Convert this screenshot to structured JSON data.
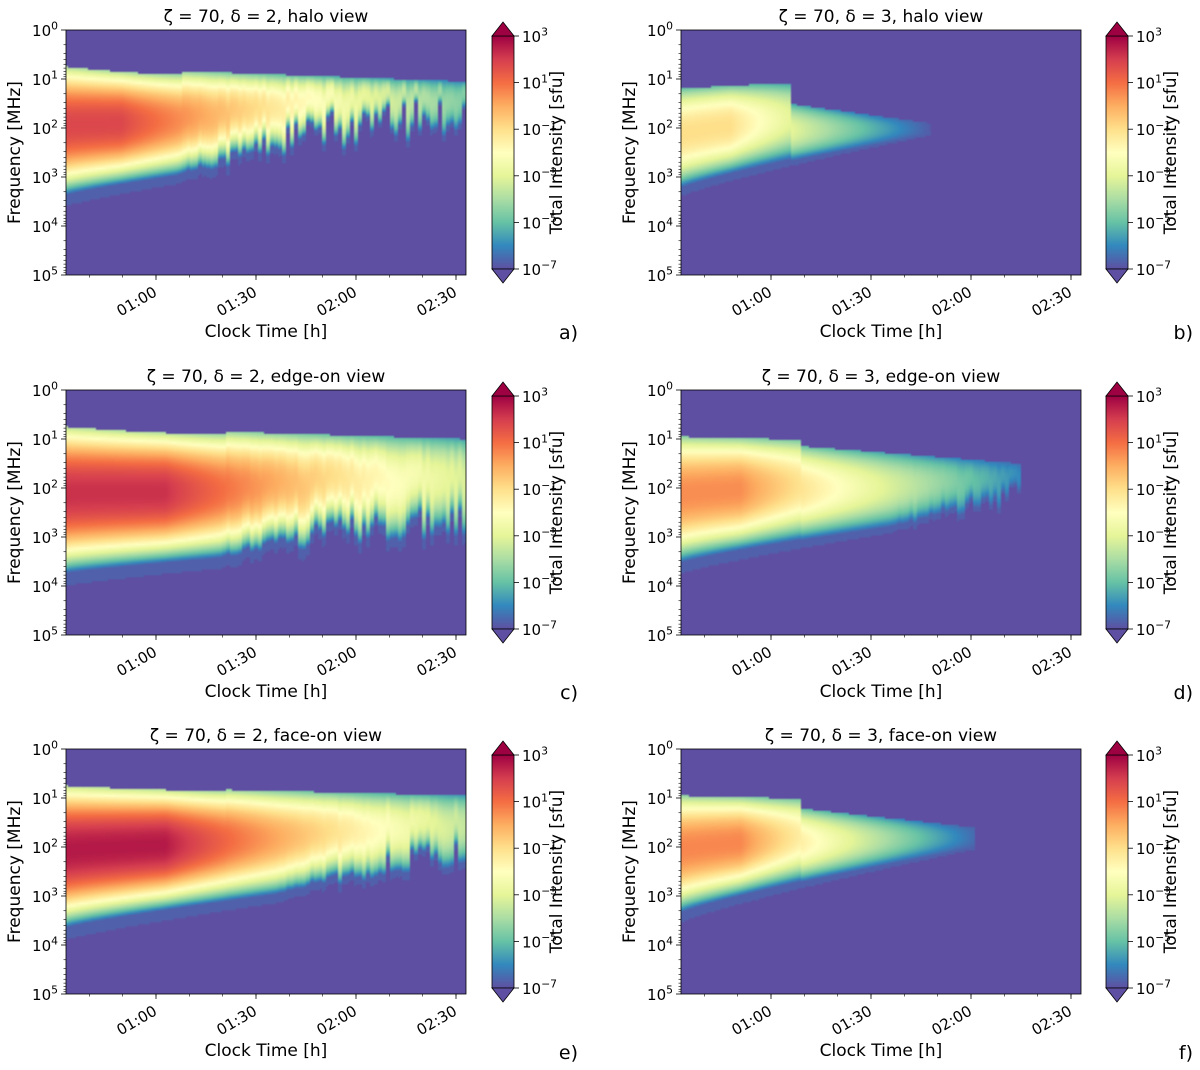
{
  "figure": {
    "colorbar": {
      "label": "Total Intensity [sfu]",
      "ticks": [
        {
          "base": "10",
          "exp": "3"
        },
        {
          "base": "10",
          "exp": "1"
        },
        {
          "base": "10",
          "exp": "−1"
        },
        {
          "base": "10",
          "exp": "−3"
        },
        {
          "base": "10",
          "exp": "−5"
        },
        {
          "base": "10",
          "exp": "−7"
        }
      ],
      "log_range": [
        -7,
        3
      ],
      "colors": [
        "#5e4fa2",
        "#3288bd",
        "#66c2a5",
        "#abdda4",
        "#e6f598",
        "#ffffbf",
        "#fee08b",
        "#fdae61",
        "#f46d43",
        "#d53e4f",
        "#9e0142"
      ]
    },
    "background_color": "#5e4fa2"
  },
  "chart_data": [
    {
      "type": "heatmap",
      "panel_label": "a)",
      "title": "ζ = 70, δ = 2, halo view",
      "xlabel": "Clock Time [h]",
      "ylabel": "Frequency [MHz]",
      "xticks": [
        "01:00",
        "01:30",
        "02:00",
        "02:30"
      ],
      "yticks": [
        {
          "base": "10",
          "exp": "0"
        },
        {
          "base": "10",
          "exp": "1"
        },
        {
          "base": "10",
          "exp": "2"
        },
        {
          "base": "10",
          "exp": "3"
        },
        {
          "base": "10",
          "exp": "4"
        },
        {
          "base": "10",
          "exp": "5"
        }
      ],
      "xlim_hours": [
        0.55,
        2.55
      ],
      "ylim_log10_freq": [
        5,
        0
      ],
      "emission": {
        "top_start": 0.75,
        "top_end": 1.05,
        "top_peak": 0.9,
        "peak_time": 0.83,
        "bot_start": 3.6,
        "bot_end": 2.25,
        "end_time": 2.55,
        "peak_log_intensity": 1.8,
        "end_log_intensity": -4.6,
        "decay_rate": 3.0,
        "ragged_start": 1.1,
        "ragged_amp": 0.9
      }
    },
    {
      "type": "heatmap",
      "panel_label": "b)",
      "title": "ζ = 70, δ = 3, halo view",
      "xlabel": "Clock Time [h]",
      "ylabel": "Frequency [MHz]",
      "xticks": [
        "01:00",
        "01:30",
        "02:00",
        "02:30"
      ],
      "yticks": [
        {
          "base": "10",
          "exp": "0"
        },
        {
          "base": "10",
          "exp": "1"
        },
        {
          "base": "10",
          "exp": "2"
        },
        {
          "base": "10",
          "exp": "3"
        },
        {
          "base": "10",
          "exp": "4"
        },
        {
          "base": "10",
          "exp": "5"
        }
      ],
      "xlim_hours": [
        0.55,
        2.55
      ],
      "ylim_log10_freq": [
        5,
        0
      ],
      "emission": {
        "top_start": 1.2,
        "top_end": 1.9,
        "top_peak": 1.1,
        "peak_time": 0.8,
        "bot_start": 3.4,
        "bot_end": 2.15,
        "end_time": 1.8,
        "peak_log_intensity": -1.0,
        "end_log_intensity": -6.8,
        "decay_rate": 2.0,
        "ragged_start": 9,
        "ragged_amp": 0
      }
    },
    {
      "type": "heatmap",
      "panel_label": "c)",
      "title": "ζ = 70, δ = 2, edge-on view",
      "xlabel": "Clock Time [h]",
      "ylabel": "Frequency [MHz]",
      "xticks": [
        "01:00",
        "01:30",
        "02:00",
        "02:30"
      ],
      "yticks": [
        {
          "base": "10",
          "exp": "0"
        },
        {
          "base": "10",
          "exp": "1"
        },
        {
          "base": "10",
          "exp": "2"
        },
        {
          "base": "10",
          "exp": "3"
        },
        {
          "base": "10",
          "exp": "4"
        },
        {
          "base": "10",
          "exp": "5"
        }
      ],
      "xlim_hours": [
        0.55,
        2.55
      ],
      "ylim_log10_freq": [
        5,
        0
      ],
      "emission": {
        "top_start": 0.75,
        "top_end": 1.0,
        "top_peak": 0.9,
        "peak_time": 1.05,
        "bot_start": 4.0,
        "bot_end": 3.2,
        "end_time": 2.55,
        "peak_log_intensity": 2.2,
        "end_log_intensity": -3.2,
        "decay_rate": 2.0,
        "ragged_start": 1.3,
        "ragged_amp": 0.7
      }
    },
    {
      "type": "heatmap",
      "panel_label": "d)",
      "title": "ζ = 70, δ = 3, edge-on view",
      "xlabel": "Clock Time [h]",
      "ylabel": "Frequency [MHz]",
      "xticks": [
        "01:00",
        "01:30",
        "02:00",
        "02:30"
      ],
      "yticks": [
        {
          "base": "10",
          "exp": "0"
        },
        {
          "base": "10",
          "exp": "1"
        },
        {
          "base": "10",
          "exp": "2"
        },
        {
          "base": "10",
          "exp": "3"
        },
        {
          "base": "10",
          "exp": "4"
        },
        {
          "base": "10",
          "exp": "5"
        }
      ],
      "xlim_hours": [
        0.55,
        2.55
      ],
      "ylim_log10_freq": [
        5,
        0
      ],
      "emission": {
        "top_start": 0.95,
        "top_end": 1.5,
        "top_peak": 1.0,
        "peak_time": 0.85,
        "bot_start": 3.75,
        "bot_end": 2.5,
        "end_time": 2.25,
        "peak_log_intensity": 0.5,
        "end_log_intensity": -6.0,
        "decay_rate": 2.2,
        "ragged_start": 1.6,
        "ragged_amp": 0.6
      }
    },
    {
      "type": "heatmap",
      "panel_label": "e)",
      "title": "ζ = 70, δ = 2, face-on view",
      "xlabel": "Clock Time [h]",
      "ylabel": "Frequency [MHz]",
      "xticks": [
        "01:00",
        "01:30",
        "02:00",
        "02:30"
      ],
      "yticks": [
        {
          "base": "10",
          "exp": "0"
        },
        {
          "base": "10",
          "exp": "1"
        },
        {
          "base": "10",
          "exp": "2"
        },
        {
          "base": "10",
          "exp": "3"
        },
        {
          "base": "10",
          "exp": "4"
        },
        {
          "base": "10",
          "exp": "5"
        }
      ],
      "xlim_hours": [
        0.55,
        2.55
      ],
      "ylim_log10_freq": [
        5,
        0
      ],
      "emission": {
        "top_start": 0.75,
        "top_end": 0.95,
        "top_peak": 0.85,
        "peak_time": 1.05,
        "bot_start": 3.9,
        "bot_end": 2.6,
        "end_time": 2.55,
        "peak_log_intensity": 2.6,
        "end_log_intensity": -3.6,
        "decay_rate": 2.2,
        "ragged_start": 1.6,
        "ragged_amp": 0.6
      }
    },
    {
      "type": "heatmap",
      "panel_label": "f)",
      "title": "ζ = 70, δ = 3, face-on view",
      "xlabel": "Clock Time [h]",
      "ylabel": "Frequency [MHz]",
      "xticks": [
        "01:00",
        "01:30",
        "02:00",
        "02:30"
      ],
      "yticks": [
        {
          "base": "10",
          "exp": "0"
        },
        {
          "base": "10",
          "exp": "1"
        },
        {
          "base": "10",
          "exp": "2"
        },
        {
          "base": "10",
          "exp": "3"
        },
        {
          "base": "10",
          "exp": "4"
        },
        {
          "base": "10",
          "exp": "5"
        }
      ],
      "xlim_hours": [
        0.55,
        2.55
      ],
      "ylim_log10_freq": [
        5,
        0
      ],
      "emission": {
        "top_start": 0.95,
        "top_end": 1.6,
        "top_peak": 1.0,
        "peak_time": 0.85,
        "bot_start": 3.55,
        "bot_end": 2.05,
        "end_time": 2.02,
        "peak_log_intensity": 0.6,
        "end_log_intensity": -6.5,
        "decay_rate": 2.2,
        "ragged_start": 9,
        "ragged_amp": 0
      }
    }
  ]
}
